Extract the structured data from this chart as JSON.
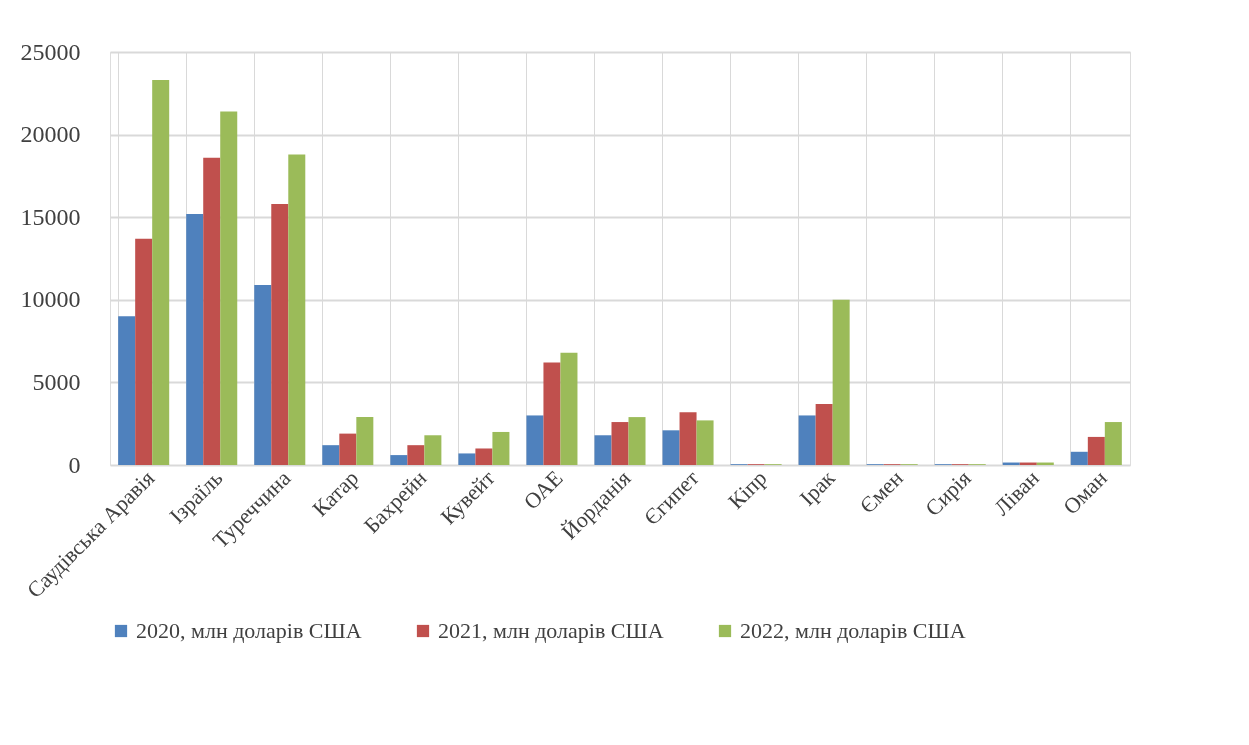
{
  "chart_data": {
    "type": "bar",
    "categories": [
      "Саудівська Аравія",
      "Ізраїль",
      "Туреччина",
      "Катар",
      "Бахрейн",
      "Кувейт",
      "ОАЕ",
      "Йорданія",
      "Єгипет",
      "Кіпр",
      "Ірак",
      "Ємен",
      "Сирія",
      "Ліван",
      "Оман"
    ],
    "series": [
      {
        "name": "2020, млн доларів США",
        "color": "#4f81bd",
        "values": [
          9000,
          15200,
          10900,
          1200,
          600,
          700,
          3000,
          1800,
          2100,
          50,
          3000,
          50,
          50,
          150,
          800
        ]
      },
      {
        "name": "2021, млн доларів США",
        "color": "#c0504d",
        "values": [
          13700,
          18600,
          15800,
          1900,
          1200,
          1000,
          6200,
          2600,
          3200,
          50,
          3700,
          50,
          50,
          150,
          1700
        ]
      },
      {
        "name": "2022, млн доларів США",
        "color": "#9bbb59",
        "values": [
          23300,
          21400,
          18800,
          2900,
          1800,
          2000,
          6800,
          2900,
          2700,
          50,
          10000,
          50,
          50,
          150,
          2600
        ]
      }
    ],
    "ylim": [
      0,
      25000
    ],
    "yticks": [
      0,
      5000,
      10000,
      15000,
      20000,
      25000
    ],
    "grid": true,
    "legend": "bottom"
  }
}
